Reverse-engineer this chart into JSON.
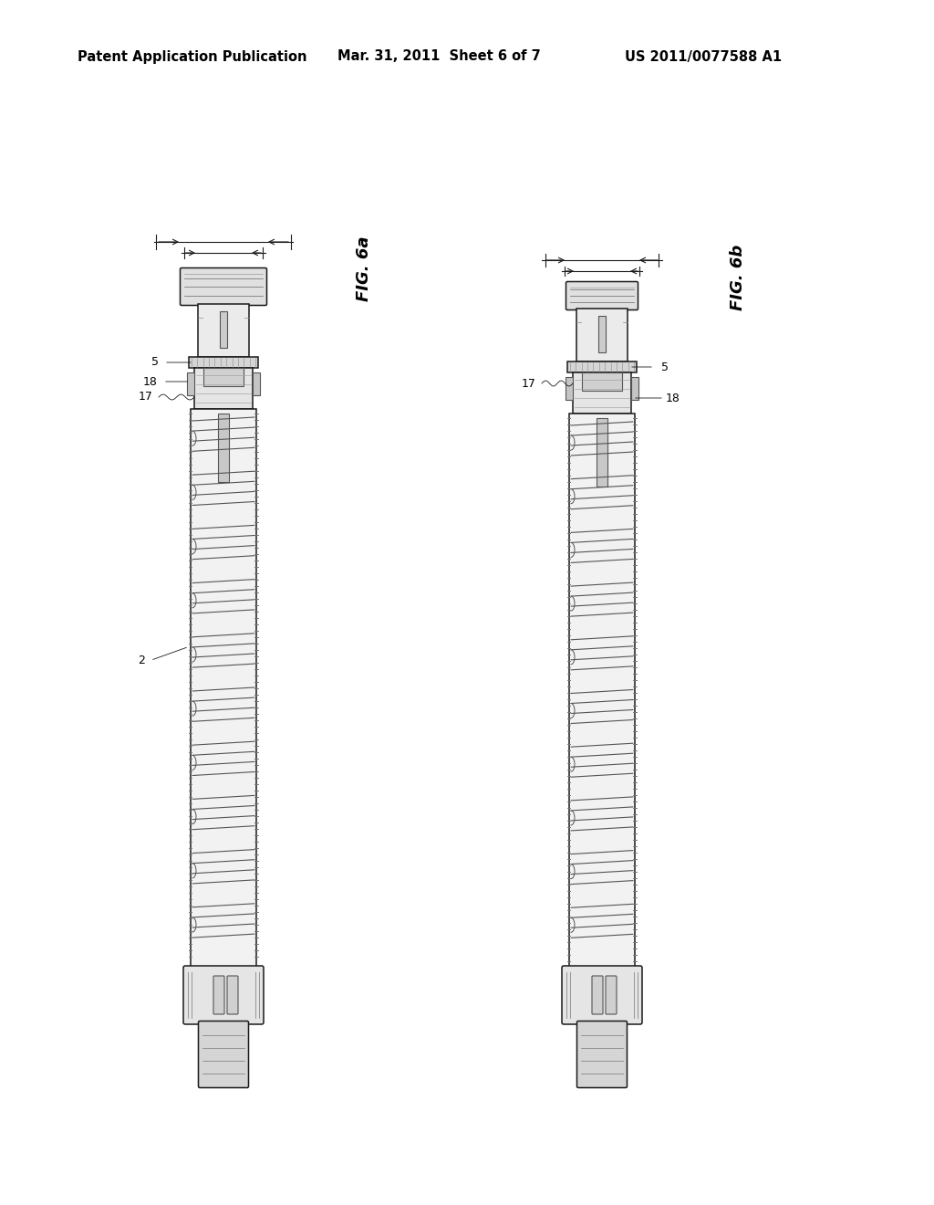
{
  "background_color": "#ffffff",
  "header_left": "Patent Application Publication",
  "header_center": "Mar. 31, 2011  Sheet 6 of 7",
  "header_right": "US 2011/0077588 A1",
  "header_fontsize": 10.5,
  "fig6a_label": "FIG. 6a",
  "fig6b_label": "FIG. 6b",
  "label_fontsize": 13,
  "line_color": "#1a1a1a",
  "fill_light": "#f0f0f0",
  "fill_mid": "#d8d8d8",
  "fill_dark": "#b0b0b0"
}
